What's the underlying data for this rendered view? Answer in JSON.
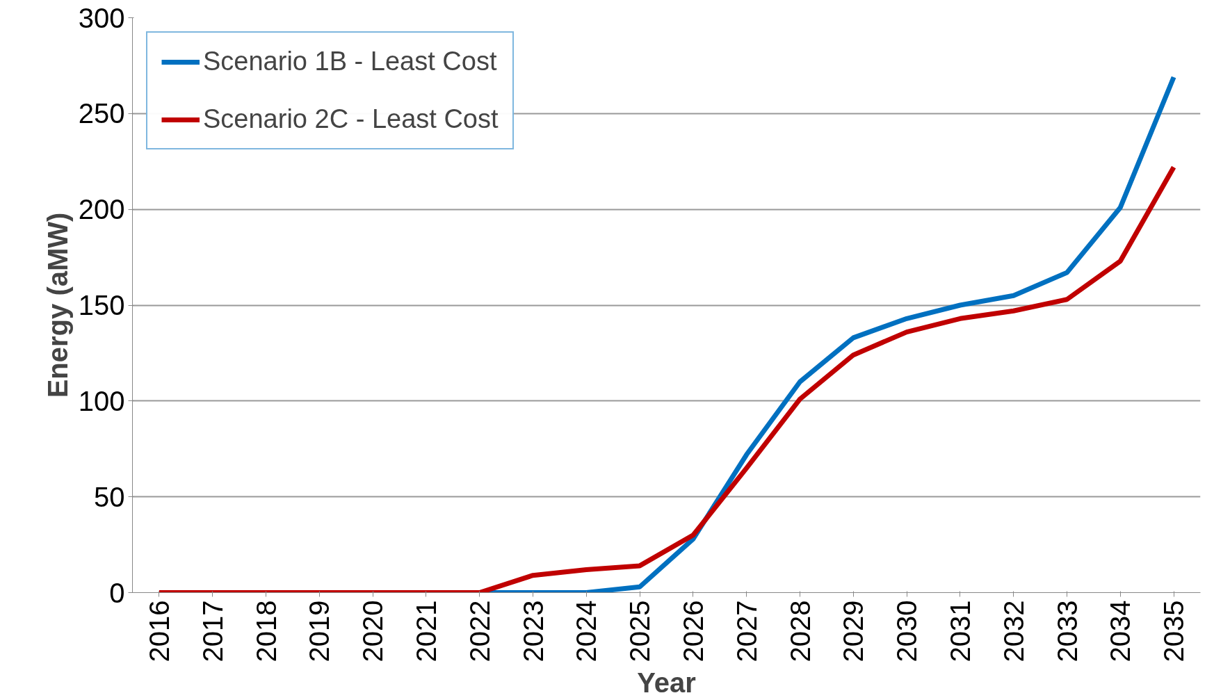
{
  "chart_data": {
    "type": "line",
    "xlabel": "Year",
    "ylabel": "Energy (aMW)",
    "categories": [
      "2016",
      "2017",
      "2018",
      "2019",
      "2020",
      "2021",
      "2022",
      "2023",
      "2024",
      "2025",
      "2026",
      "2027",
      "2028",
      "2029",
      "2030",
      "2031",
      "2032",
      "2033",
      "2034",
      "2035"
    ],
    "series": [
      {
        "name": "Scenario 1B - Least Cost",
        "color": "#0070c0",
        "values": [
          null,
          null,
          null,
          null,
          null,
          0,
          0,
          0,
          0,
          3,
          28,
          72,
          110,
          133,
          143,
          150,
          155,
          167,
          201,
          269
        ]
      },
      {
        "name": "Scenario 2C - Least Cost",
        "color": "#c00000",
        "values": [
          0,
          0,
          0,
          0,
          0,
          0,
          0,
          9,
          12,
          14,
          30,
          65,
          101,
          124,
          136,
          143,
          147,
          153,
          173,
          222
        ]
      }
    ],
    "ylim": [
      0,
      300
    ],
    "yticks": [
      0,
      50,
      100,
      150,
      200,
      250,
      300
    ],
    "grid": "y",
    "legend": "top left",
    "marker": "none",
    "line_style": "solid"
  }
}
